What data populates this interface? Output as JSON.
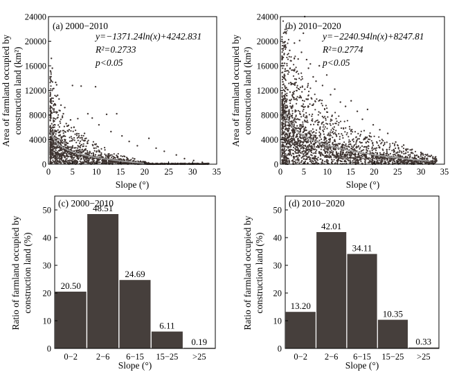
{
  "colors": {
    "bar": "#463f3c",
    "point": "#3e3431",
    "curve": "#a9a9a9",
    "axis": "#000000"
  },
  "chart_data": [
    {
      "type": "scatter",
      "panel_title": "(a) 2000−2010",
      "equation": "y=−1371.24ln(x)+4242.831",
      "r_squared": "R²=0.2733",
      "p_value": "p<0.05",
      "xlabel": "Slope (°)",
      "ylabel_line1": "Area of farmland occupied by",
      "ylabel_line2": "construction land (km²)",
      "xlim": [
        0,
        35
      ],
      "ylim": [
        0,
        24000
      ],
      "xticks": [
        0,
        5,
        10,
        15,
        20,
        25,
        30,
        35
      ],
      "yticks": [
        0,
        4000,
        8000,
        12000,
        16000,
        20000,
        24000
      ],
      "trend": {
        "a": -1371.24,
        "b": 4242.831,
        "x_from": 0.5,
        "x_to": 20
      },
      "grid": false,
      "points": [
        [
          0.6,
          17200
        ],
        [
          0.8,
          15600
        ],
        [
          1.1,
          12300
        ],
        [
          1.3,
          9800
        ],
        [
          1.5,
          13300
        ],
        [
          1.7,
          12900
        ],
        [
          1.9,
          11200
        ],
        [
          2.2,
          10600
        ],
        [
          2.4,
          8700
        ],
        [
          2.6,
          9600
        ],
        [
          2.9,
          7600
        ],
        [
          3.1,
          8200
        ],
        [
          3.4,
          9200
        ],
        [
          3.7,
          6600
        ],
        [
          4.0,
          6200
        ],
        [
          4.3,
          5600
        ],
        [
          4.6,
          7200
        ],
        [
          5.0,
          12800
        ],
        [
          5.3,
          6000
        ],
        [
          6.1,
          7400
        ],
        [
          6.8,
          12700
        ],
        [
          7.5,
          5000
        ],
        [
          8.2,
          8200
        ],
        [
          9.1,
          7500
        ],
        [
          9.8,
          12600
        ],
        [
          10.5,
          6400
        ],
        [
          12.1,
          8100
        ],
        [
          13.0,
          5300
        ],
        [
          14.2,
          8200
        ],
        [
          15.3,
          4600
        ],
        [
          16.8,
          3700
        ],
        [
          18.5,
          3000
        ],
        [
          20.9,
          4200
        ],
        [
          22.4,
          2600
        ],
        [
          24.1,
          2100
        ],
        [
          26.6,
          1500
        ],
        [
          28.3,
          900
        ],
        [
          30.2,
          600
        ],
        [
          32.0,
          300
        ]
      ],
      "point_count": 1800
    },
    {
      "type": "scatter",
      "panel_title": "(b) 2010−2020",
      "equation": "y=−2240.94ln(x)+8247.81",
      "r_squared": "R²=0.2774",
      "p_value": "p<0.05",
      "xlabel": "Slope (°)",
      "ylabel_line1": "Area of farmland occupied by",
      "ylabel_line2": "construction land (km²)",
      "xlim": [
        0,
        35
      ],
      "ylim": [
        0,
        24000
      ],
      "xticks": [
        0,
        5,
        10,
        15,
        20,
        25,
        30,
        35
      ],
      "yticks": [
        0,
        4000,
        8000,
        12000,
        16000,
        20000,
        24000
      ],
      "trend": {
        "a": -2240.94,
        "b": 8247.81,
        "x_from": 1,
        "x_to": 32
      },
      "grid": false,
      "points": [
        [
          0.4,
          17400
        ],
        [
          0.9,
          16400
        ],
        [
          1.2,
          19000
        ],
        [
          1.6,
          15200
        ],
        [
          2.0,
          18500
        ],
        [
          2.3,
          16800
        ],
        [
          2.7,
          15300
        ],
        [
          3.0,
          19700
        ],
        [
          3.4,
          13800
        ],
        [
          3.8,
          17100
        ],
        [
          4.1,
          20100
        ],
        [
          4.5,
          18200
        ],
        [
          4.9,
          21300
        ],
        [
          5.2,
          24000
        ],
        [
          5.6,
          17000
        ],
        [
          6.0,
          15600
        ],
        [
          6.4,
          16300
        ],
        [
          7.0,
          14200
        ],
        [
          7.6,
          13500
        ],
        [
          8.3,
          16000
        ],
        [
          9.0,
          12800
        ],
        [
          9.9,
          14500
        ],
        [
          10.7,
          11300
        ],
        [
          11.6,
          12200
        ],
        [
          12.8,
          10100
        ],
        [
          13.9,
          9400
        ],
        [
          15.1,
          10300
        ],
        [
          16.4,
          8600
        ],
        [
          17.5,
          7300
        ],
        [
          18.6,
          8900
        ],
        [
          19.8,
          6400
        ],
        [
          21.2,
          5600
        ],
        [
          22.9,
          5000
        ],
        [
          24.6,
          3600
        ],
        [
          26.3,
          3100
        ],
        [
          28.1,
          2400
        ],
        [
          30.0,
          1900
        ],
        [
          31.8,
          1300
        ],
        [
          33.0,
          500
        ]
      ],
      "point_count": 2400
    },
    {
      "type": "bar",
      "panel_title": "(c) 2000−2010",
      "categories": [
        "0−2",
        "2−6",
        "6−15",
        "15−25",
        ">25"
      ],
      "values": [
        20.5,
        48.51,
        24.69,
        6.11,
        0.19
      ],
      "value_labels": [
        "20.50",
        "48.51",
        "24.69",
        "6.11",
        "0.19"
      ],
      "xlabel": "Slope (°)",
      "ylabel_line1": "Ratio of farmland occupied by",
      "ylabel_line2": "construction land (%)",
      "ylim": [
        0,
        55
      ],
      "yticks": [
        0,
        10,
        20,
        30,
        40,
        50
      ],
      "grid": false
    },
    {
      "type": "bar",
      "panel_title": "(d) 2010−2020",
      "categories": [
        "0−2",
        "2−6",
        "6−15",
        "15−25",
        ">25"
      ],
      "values": [
        13.2,
        42.01,
        34.11,
        10.35,
        0.33
      ],
      "value_labels": [
        "13.20",
        "42.01",
        "34.11",
        "10.35",
        "0.33"
      ],
      "xlabel": "Slope (°)",
      "ylabel_line1": "Ratio of farmland occupied by",
      "ylabel_line2": "construction land (%)",
      "ylim": [
        0,
        55
      ],
      "yticks": [
        0,
        10,
        20,
        30,
        40,
        50
      ],
      "grid": false
    }
  ]
}
